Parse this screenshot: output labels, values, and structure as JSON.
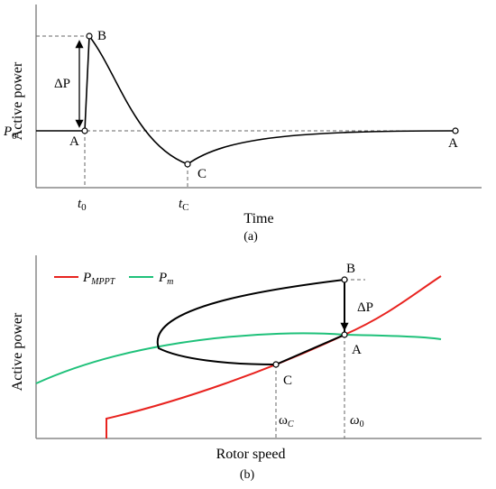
{
  "panel_a": {
    "y_axis_label": "Active power",
    "x_axis_label": "Time",
    "caption": "(a)",
    "p0_label": "P",
    "p0_sub": "0",
    "delta_p": "ΔP",
    "t0_label": "t",
    "t0_sub": "0",
    "tc_label": "t",
    "tc_sub": "C",
    "point_a_left": "A",
    "point_b": "B",
    "point_c": "C",
    "point_a_right": "A"
  },
  "panel_b": {
    "y_axis_label": "Active power",
    "x_axis_label": "Rotor speed",
    "caption": "(b)",
    "legend": [
      {
        "symbol": "P",
        "sub": "MPPT",
        "color": "#e8231f"
      },
      {
        "symbol": "P",
        "sub": "m",
        "color": "#1fc17a"
      }
    ],
    "delta_p": "ΔP",
    "point_b": "B",
    "point_a": "A",
    "point_c": "C",
    "omega_c": "ω",
    "omega_c_sub": "C",
    "omega_0": "ω",
    "omega_0_sub": "0"
  }
}
